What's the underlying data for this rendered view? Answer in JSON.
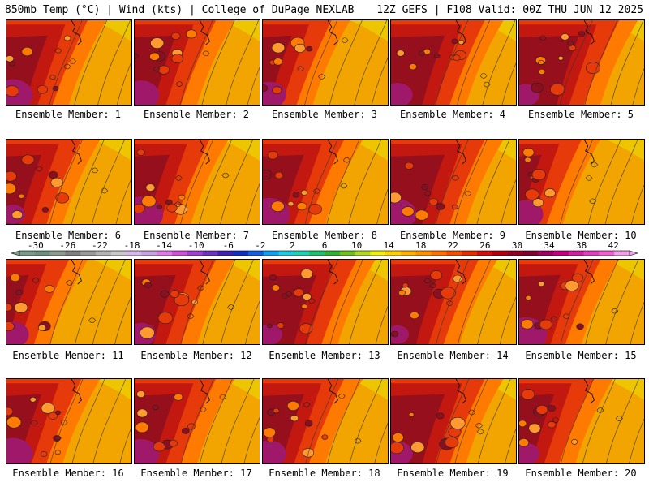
{
  "header": {
    "left_title": "850mb Temp (°C) | Wind (kts) | College of DuPage NEXLAB",
    "right_title": "12Z GEFS | F108 Valid: 00Z THU JUN 12 2025"
  },
  "panel_label_prefix": "Ensemble Member: ",
  "members": [
    {
      "label": "Ensemble Member: 1",
      "core_c": 29,
      "hot_c": 34,
      "plume_east": 0.45
    },
    {
      "label": "Ensemble Member: 2",
      "core_c": 30,
      "hot_c": 33,
      "plume_east": 0.45
    },
    {
      "label": "Ensemble Member: 3",
      "core_c": 28,
      "hot_c": 35,
      "plume_east": 0.35
    },
    {
      "label": "Ensemble Member: 4",
      "core_c": 30,
      "hot_c": 32,
      "plume_east": 0.55
    },
    {
      "label": "Ensemble Member: 5",
      "core_c": 30,
      "hot_c": 32,
      "plume_east": 0.6
    },
    {
      "label": "Ensemble Member: 6",
      "core_c": 29,
      "hot_c": 35,
      "plume_east": 0.4
    },
    {
      "label": "Ensemble Member: 7",
      "core_c": 28,
      "hot_c": 32,
      "plume_east": 0.4
    },
    {
      "label": "Ensemble Member: 8",
      "core_c": 27,
      "hot_c": 31,
      "plume_east": 0.45
    },
    {
      "label": "Ensemble Member: 9",
      "core_c": 29,
      "hot_c": 33,
      "plume_east": 0.55
    },
    {
      "label": "Ensemble Member: 10",
      "core_c": 26,
      "hot_c": 33,
      "plume_east": 0.3
    },
    {
      "label": "Ensemble Member: 11",
      "core_c": 27,
      "hot_c": 35,
      "plume_east": 0.3
    },
    {
      "label": "Ensemble Member: 12",
      "core_c": 29,
      "hot_c": 31,
      "plume_east": 0.45
    },
    {
      "label": "Ensemble Member: 13",
      "core_c": 29,
      "hot_c": 32,
      "plume_east": 0.55
    },
    {
      "label": "Ensemble Member: 14",
      "core_c": 30,
      "hot_c": 33,
      "plume_east": 0.5
    },
    {
      "label": "Ensemble Member: 15",
      "core_c": 30,
      "hot_c": 34,
      "plume_east": 0.45
    },
    {
      "label": "Ensemble Member: 16",
      "core_c": 28,
      "hot_c": 32,
      "plume_east": 0.4
    },
    {
      "label": "Ensemble Member: 17",
      "core_c": 27,
      "hot_c": 31,
      "plume_east": 0.45
    },
    {
      "label": "Ensemble Member: 18",
      "core_c": 29,
      "hot_c": 32,
      "plume_east": 0.45
    },
    {
      "label": "Ensemble Member: 19",
      "core_c": 30,
      "hot_c": 32,
      "plume_east": 0.55
    },
    {
      "label": "Ensemble Member: 20",
      "core_c": 28,
      "hot_c": 34,
      "plume_east": 0.4
    }
  ],
  "colorbar": {
    "labels": [
      "-30",
      "-26",
      "-22",
      "-18",
      "-14",
      "-10",
      "-6",
      "-2",
      "2",
      "6",
      "10",
      "14",
      "18",
      "22",
      "26",
      "30",
      "34",
      "38",
      "42"
    ],
    "min": -32,
    "max": 44,
    "step": 2,
    "colors": [
      "#7a9a8a",
      "#6e8f80",
      "#8a9a8f",
      "#7f7f7f",
      "#9a9a9a",
      "#b3b3b3",
      "#c9c9c9",
      "#d8b8e8",
      "#c9a0e0",
      "#e07ae8",
      "#d050d8",
      "#a040d0",
      "#7030c0",
      "#4020b0",
      "#1030c0",
      "#1060e0",
      "#10a0f0",
      "#20c8e0",
      "#20d0b0",
      "#20c070",
      "#30b030",
      "#70c020",
      "#b0d820",
      "#f0f010",
      "#ffd000",
      "#ffb000",
      "#ff9000",
      "#ff7000",
      "#f05000",
      "#e03000",
      "#d01010",
      "#b00010",
      "#900020",
      "#800030",
      "#a00060",
      "#c00080",
      "#d020a0",
      "#e040c0",
      "#f060d0",
      "#f4a0e8"
    ]
  },
  "scale_colors": {
    "bg_warm": "#f2a500",
    "mid": "#ff7a00",
    "red": "#e63a0a",
    "deep_red": "#c21810",
    "maroon": "#8d0f1f",
    "purple": "#a0186a",
    "cool_edge": "#e9e000"
  }
}
